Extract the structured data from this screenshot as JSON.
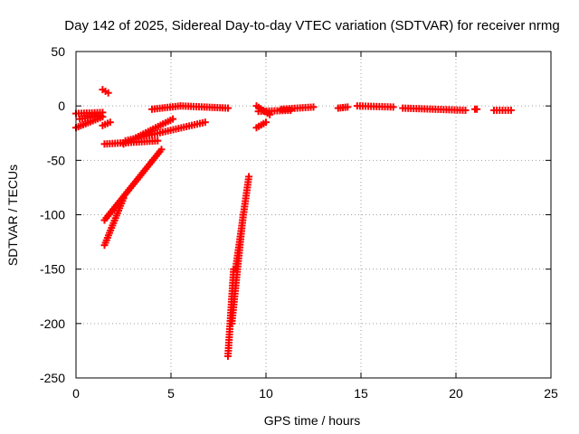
{
  "chart_data": {
    "type": "scatter",
    "title": "Day 142 of 2025, Sidereal Day-to-day VTEC variation (SDTVAR) for receiver nrmg",
    "xlabel": "GPS time / hours",
    "ylabel": "SDTVAR / TECUs",
    "xlim": [
      0,
      25
    ],
    "ylim": [
      -250,
      50
    ],
    "xticks": [
      0,
      5,
      10,
      15,
      20,
      25
    ],
    "yticks": [
      -250,
      -200,
      -150,
      -100,
      -50,
      0,
      50
    ],
    "grid": true,
    "marker": "plus",
    "color": "#ff0000",
    "series": [
      {
        "name": "SDTVAR",
        "segments": [
          {
            "start": [
              0.0,
              -7
            ],
            "end": [
              1.4,
              -6
            ]
          },
          {
            "start": [
              0.0,
              -20
            ],
            "end": [
              1.4,
              -10
            ]
          },
          {
            "start": [
              0.2,
              -12
            ],
            "end": [
              1.3,
              -9
            ]
          },
          {
            "start": [
              1.4,
              15
            ],
            "end": [
              1.7,
              12
            ]
          },
          {
            "start": [
              1.4,
              -18
            ],
            "end": [
              1.8,
              -15
            ]
          },
          {
            "start": [
              1.5,
              -128
            ],
            "end": [
              2.5,
              -85
            ]
          },
          {
            "start": [
              1.5,
              -105
            ],
            "end": [
              4.5,
              -40
            ]
          },
          {
            "start": [
              1.5,
              -35
            ],
            "end": [
              4.3,
              -32
            ]
          },
          {
            "start": [
              2.5,
              -35
            ],
            "end": [
              5.1,
              -12
            ]
          },
          {
            "start": [
              2.6,
              -32
            ],
            "end": [
              6.8,
              -15
            ]
          },
          {
            "start": [
              4.0,
              -3
            ],
            "end": [
              5.5,
              0
            ]
          },
          {
            "start": [
              5.5,
              0
            ],
            "end": [
              8.0,
              -2
            ]
          },
          {
            "start": [
              8.0,
              -230
            ],
            "end": [
              8.3,
              -150
            ]
          },
          {
            "start": [
              8.2,
              -200
            ],
            "end": [
              8.8,
              -100
            ]
          },
          {
            "start": [
              8.4,
              -150
            ],
            "end": [
              9.1,
              -65
            ]
          },
          {
            "start": [
              9.5,
              -20
            ],
            "end": [
              10.0,
              -15
            ]
          },
          {
            "start": [
              9.5,
              0
            ],
            "end": [
              10.2,
              -8
            ]
          },
          {
            "start": [
              9.6,
              -5
            ],
            "end": [
              11.3,
              -4
            ]
          },
          {
            "start": [
              10.8,
              -3
            ],
            "end": [
              12.5,
              -1
            ]
          },
          {
            "start": [
              13.8,
              -2
            ],
            "end": [
              14.3,
              -1
            ]
          },
          {
            "start": [
              14.8,
              0
            ],
            "end": [
              16.7,
              -1
            ]
          },
          {
            "start": [
              17.2,
              -2
            ],
            "end": [
              20.5,
              -4
            ]
          },
          {
            "start": [
              21.0,
              -3
            ],
            "end": [
              21.1,
              -3
            ]
          },
          {
            "start": [
              22.0,
              -4
            ],
            "end": [
              22.9,
              -4
            ]
          }
        ]
      }
    ]
  }
}
